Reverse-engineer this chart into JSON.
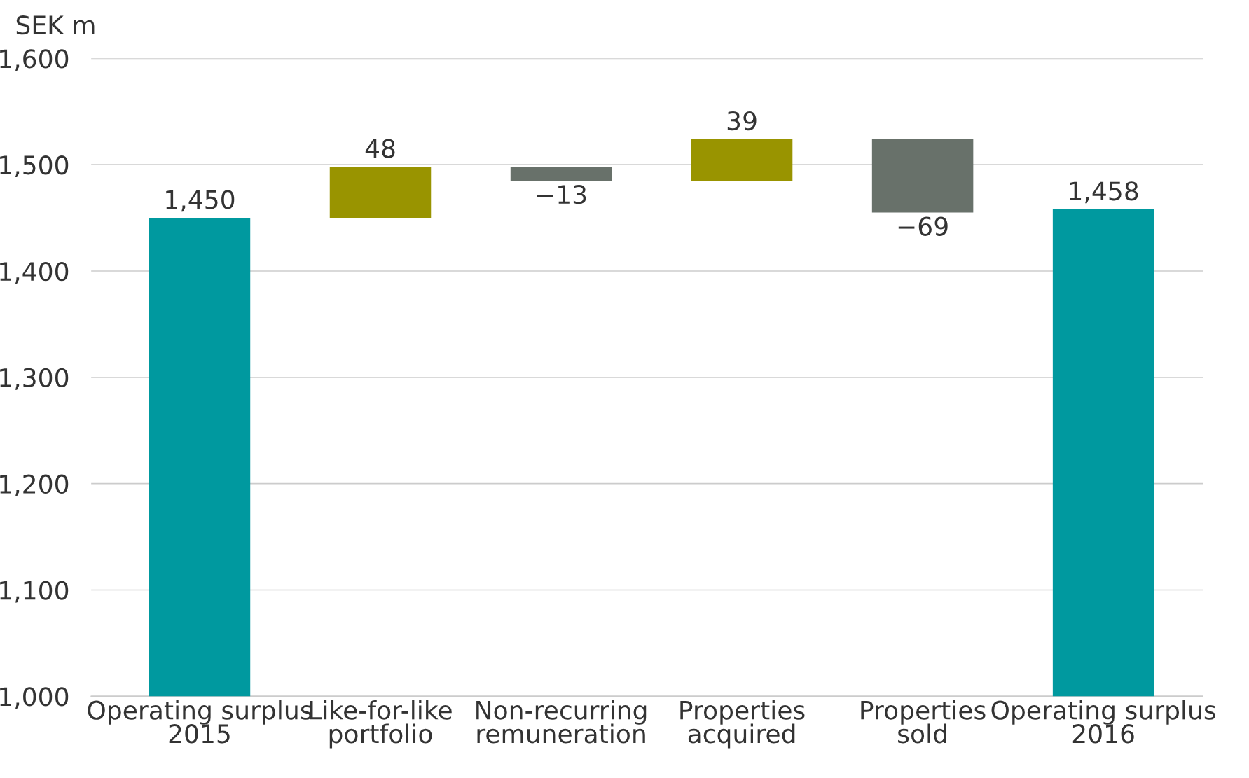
{
  "chart_data": {
    "type": "bar",
    "ylabel": "SEK m",
    "categories": [
      "Operating surplus\n2015",
      "Like-for-like\nportfolio",
      "Non-recurring\nremuneration",
      "Properties\nacquired",
      "Properties\nsold",
      "Operating surplus\n2016"
    ],
    "values": [
      1450,
      48,
      -13,
      39,
      -69,
      1458
    ],
    "base": [
      0,
      1450,
      1498,
      1485,
      1524,
      0
    ],
    "colors": [
      "#00999f",
      "#999400",
      "#68716a",
      "#999400",
      "#68716a",
      "#00999f"
    ],
    "value_labels": [
      "1,450",
      "48",
      "−13",
      "39",
      "−69",
      "1,458"
    ],
    "ylim": [
      1000,
      1600
    ],
    "yticks": [
      {
        "value": 1000,
        "label": "1,000"
      },
      {
        "value": 1100,
        "label": "1,100"
      },
      {
        "value": 1200,
        "label": "1,200"
      },
      {
        "value": 1300,
        "label": "1,300"
      },
      {
        "value": 1400,
        "label": "1,400"
      },
      {
        "value": 1500,
        "label": "1,500"
      },
      {
        "value": 1600,
        "label": "1,600"
      }
    ],
    "grid": "y"
  }
}
